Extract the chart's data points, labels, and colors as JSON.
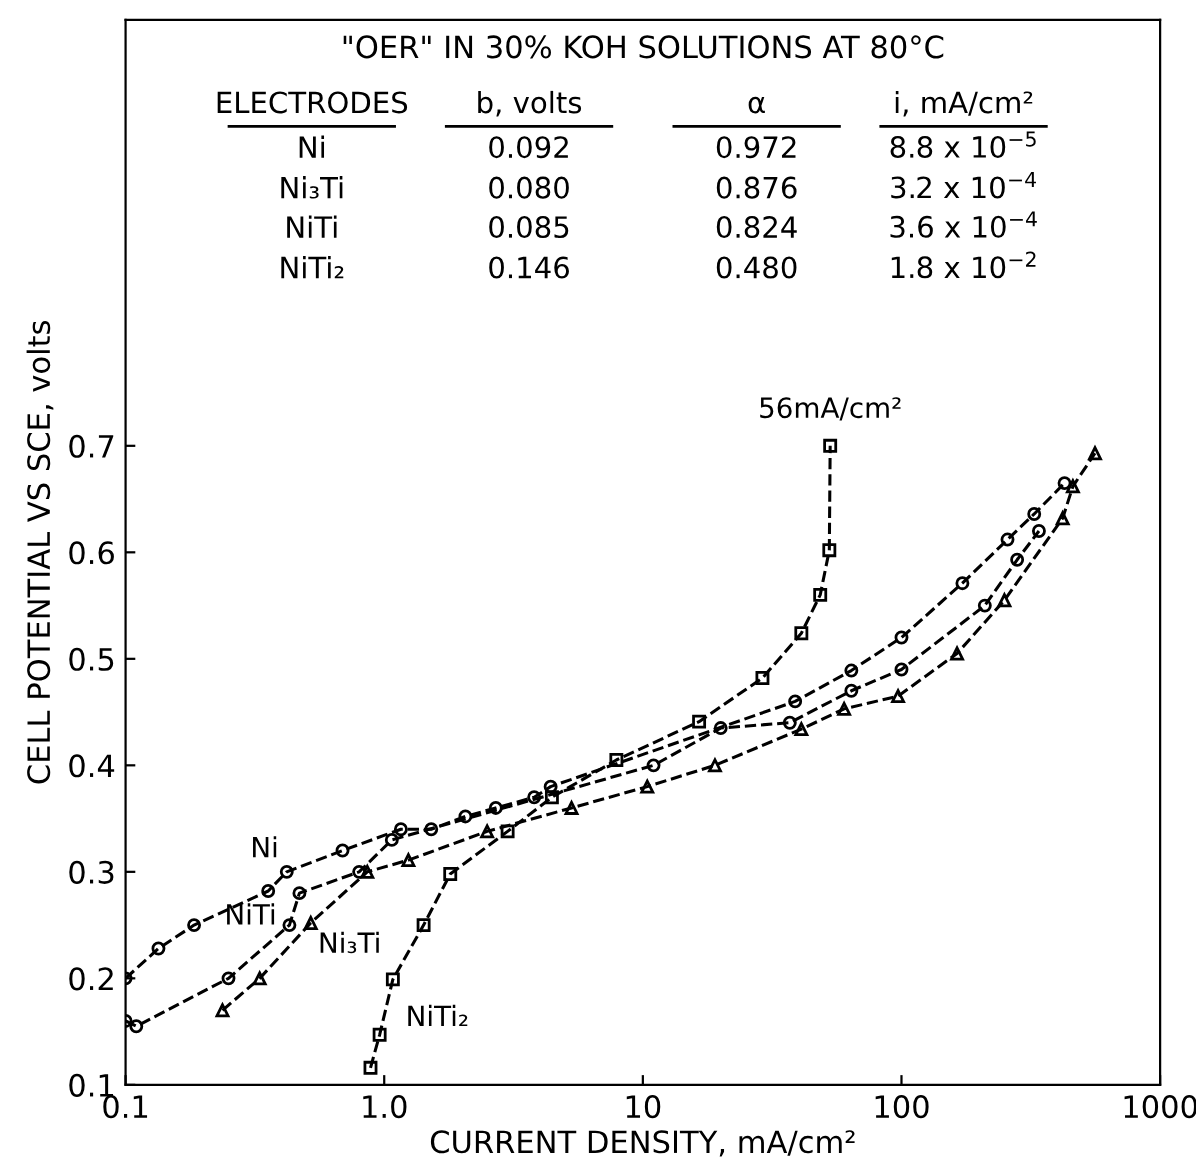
{
  "chart_data": {
    "type": "line",
    "title": "\"OER\" IN 30% KOH SOLUTIONS AT 80°C",
    "xlabel": "CURRENT DENSITY, mA/cm²",
    "ylabel": "CELL POTENTIAL VS SCE, volts",
    "log": "x",
    "xlim": [
      0.1,
      1000
    ],
    "ylim": [
      0.1,
      1.1
    ],
    "xticks": [
      0.1,
      {
        "value": 1,
        "label": "1.0"
      },
      10,
      100,
      1000
    ],
    "yticks": [
      0.1,
      0.2,
      0.3,
      0.4,
      0.5,
      0.6,
      0.7
    ],
    "grid": false,
    "legend": false,
    "line_style": "dashed",
    "series": [
      {
        "name": "Ni",
        "color": "#000000",
        "marker": "circle",
        "x": [
          0.1,
          0.134,
          0.184,
          0.356,
          0.42,
          0.69,
          1.16,
          1.52,
          2.06,
          2.7,
          3.8,
          4.4,
          38.8,
          64,
          100,
          172,
          257,
          326,
          427
        ],
        "values": [
          0.2,
          0.228,
          0.25,
          0.282,
          0.3,
          0.32,
          0.34,
          0.34,
          0.352,
          0.36,
          0.37,
          0.38,
          0.46,
          0.489,
          0.52,
          0.571,
          0.612,
          0.636,
          0.665
        ]
      },
      {
        "name": "Ni₃Ti",
        "color": "#000000",
        "marker": "triangle",
        "x": [
          0.237,
          0.33,
          0.52,
          0.86,
          1.24,
          2.5,
          5.3,
          10.4,
          19,
          41,
          60,
          97,
          164,
          250,
          420,
          460,
          560
        ],
        "values": [
          0.17,
          0.2,
          0.252,
          0.3,
          0.311,
          0.338,
          0.36,
          0.38,
          0.4,
          0.434,
          0.453,
          0.465,
          0.505,
          0.555,
          0.632,
          0.662,
          0.693
        ]
      },
      {
        "name": "NiTi",
        "color": "#000000",
        "marker": "circle",
        "x": [
          0.1,
          0.11,
          0.25,
          0.43,
          0.47,
          0.8,
          1.07,
          11,
          20,
          37,
          64,
          100,
          210,
          280,
          340
        ],
        "values": [
          0.16,
          0.155,
          0.2,
          0.25,
          0.28,
          0.3,
          0.33,
          0.4,
          0.435,
          0.44,
          0.47,
          0.49,
          0.55,
          0.593,
          0.62
        ]
      },
      {
        "name": "NiTi₂",
        "color": "#000000",
        "marker": "square",
        "x": [
          0.885,
          0.96,
          1.08,
          1.42,
          1.8,
          3.0,
          4.45,
          7.9,
          16.5,
          29,
          41,
          48.5,
          52.6,
          53
        ],
        "values": [
          0.116,
          0.147,
          0.199,
          0.25,
          0.298,
          0.338,
          0.37,
          0.405,
          0.441,
          0.482,
          0.524,
          0.56,
          0.602,
          0.7
        ]
      }
    ],
    "annotations": [
      {
        "text": "56mA/cm²",
        "x": 53,
        "y": 0.7
      },
      "ELECTRODES",
      "b, volts",
      "α",
      "i, mA/cm²",
      "Ni",
      "0.092",
      "0.972",
      "8.8 x 10$^{−5}$",
      "Ni₃Ti",
      "0.080",
      "0.876",
      "3.2 x 10$^{−4}$",
      "NiTi",
      "0.085",
      "0.824",
      "3.6 x 10$^{−4}$",
      "NiTi₂",
      "0.146",
      "0.480",
      "1.8 x 10$^{−2}$"
    ]
  }
}
